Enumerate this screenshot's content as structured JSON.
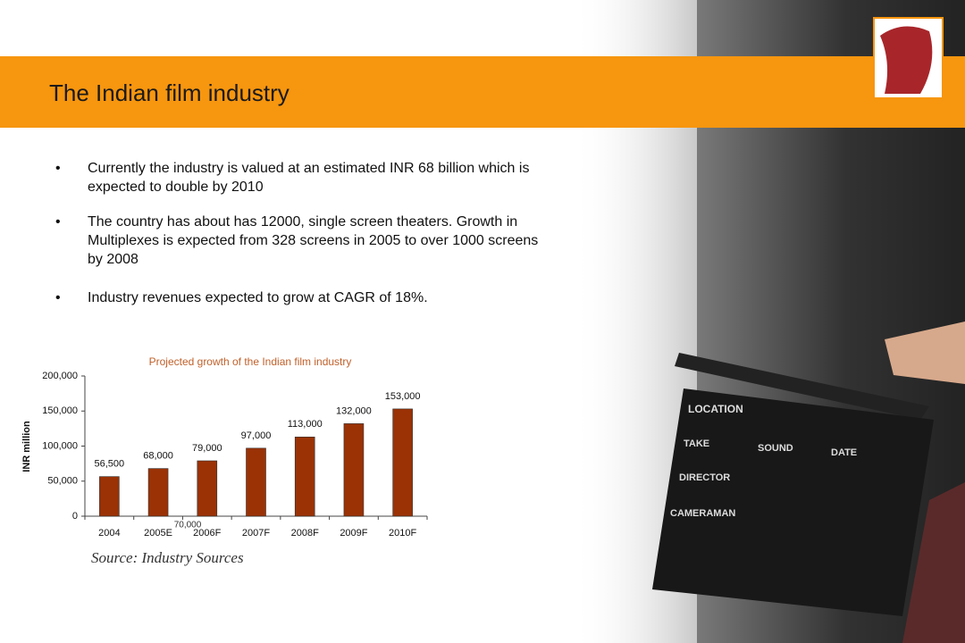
{
  "header": {
    "title": "The Indian film industry"
  },
  "bullets": [
    "Currently the industry is valued at an estimated INR 68 billion which is expected to double by 2010",
    "The country has about has 12000, single screen theaters. Growth in Multiplexes is expected from 328 screens in 2005 to over 1000 screens by 2008",
    "Industry revenues expected to grow at CAGR of 18%."
  ],
  "chart_data": {
    "type": "bar",
    "title": "Projected growth of the Indian film industry",
    "y_label": "INR million",
    "categories": [
      "2004",
      "2005E",
      "2006F",
      "2007F",
      "2008F",
      "2009F",
      "2010F"
    ],
    "values": [
      56500,
      68000,
      79000,
      97000,
      113000,
      132000,
      153000
    ],
    "value_labels": [
      "56,500",
      "68,000",
      "79,000",
      "97,000",
      "113,000",
      "132,000",
      "153,000"
    ],
    "color": "#9a3206",
    "ylim": [
      0,
      200000
    ],
    "yticks": [
      0,
      {
        "value": 50000,
        "label": "50,000"
      },
      {
        "value": 100000,
        "label": "100,000"
      },
      {
        "value": 150000,
        "label": "150,000"
      },
      {
        "value": 200000,
        "label": "200,000"
      }
    ],
    "annotation": "70,000"
  },
  "source": "Source: Industry Sources"
}
